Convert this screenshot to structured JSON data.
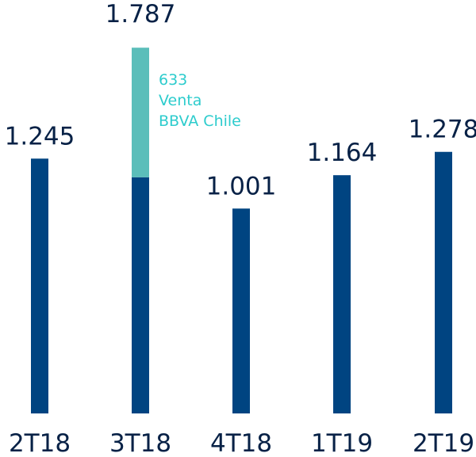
{
  "chart_data": {
    "type": "stacked_bar",
    "categories": [
      "2T18",
      "3T18",
      "4T18",
      "1T19",
      "2T19"
    ],
    "series": [
      {
        "color": "#004481",
        "values": [
          1245,
          1154,
          1001,
          1164,
          1278
        ],
        "value_labels": [
          "1.245",
          null,
          "1.001",
          "1.164",
          "1.278"
        ]
      },
      {
        "name": "Venta BBVA Chile",
        "color": "#5bbeba",
        "values": [
          null,
          633,
          null,
          null,
          null
        ]
      }
    ],
    "totals": [
      {
        "category": 1,
        "value": 1787,
        "label": "1.787"
      }
    ],
    "ylim": [
      0,
      1900
    ]
  }
}
